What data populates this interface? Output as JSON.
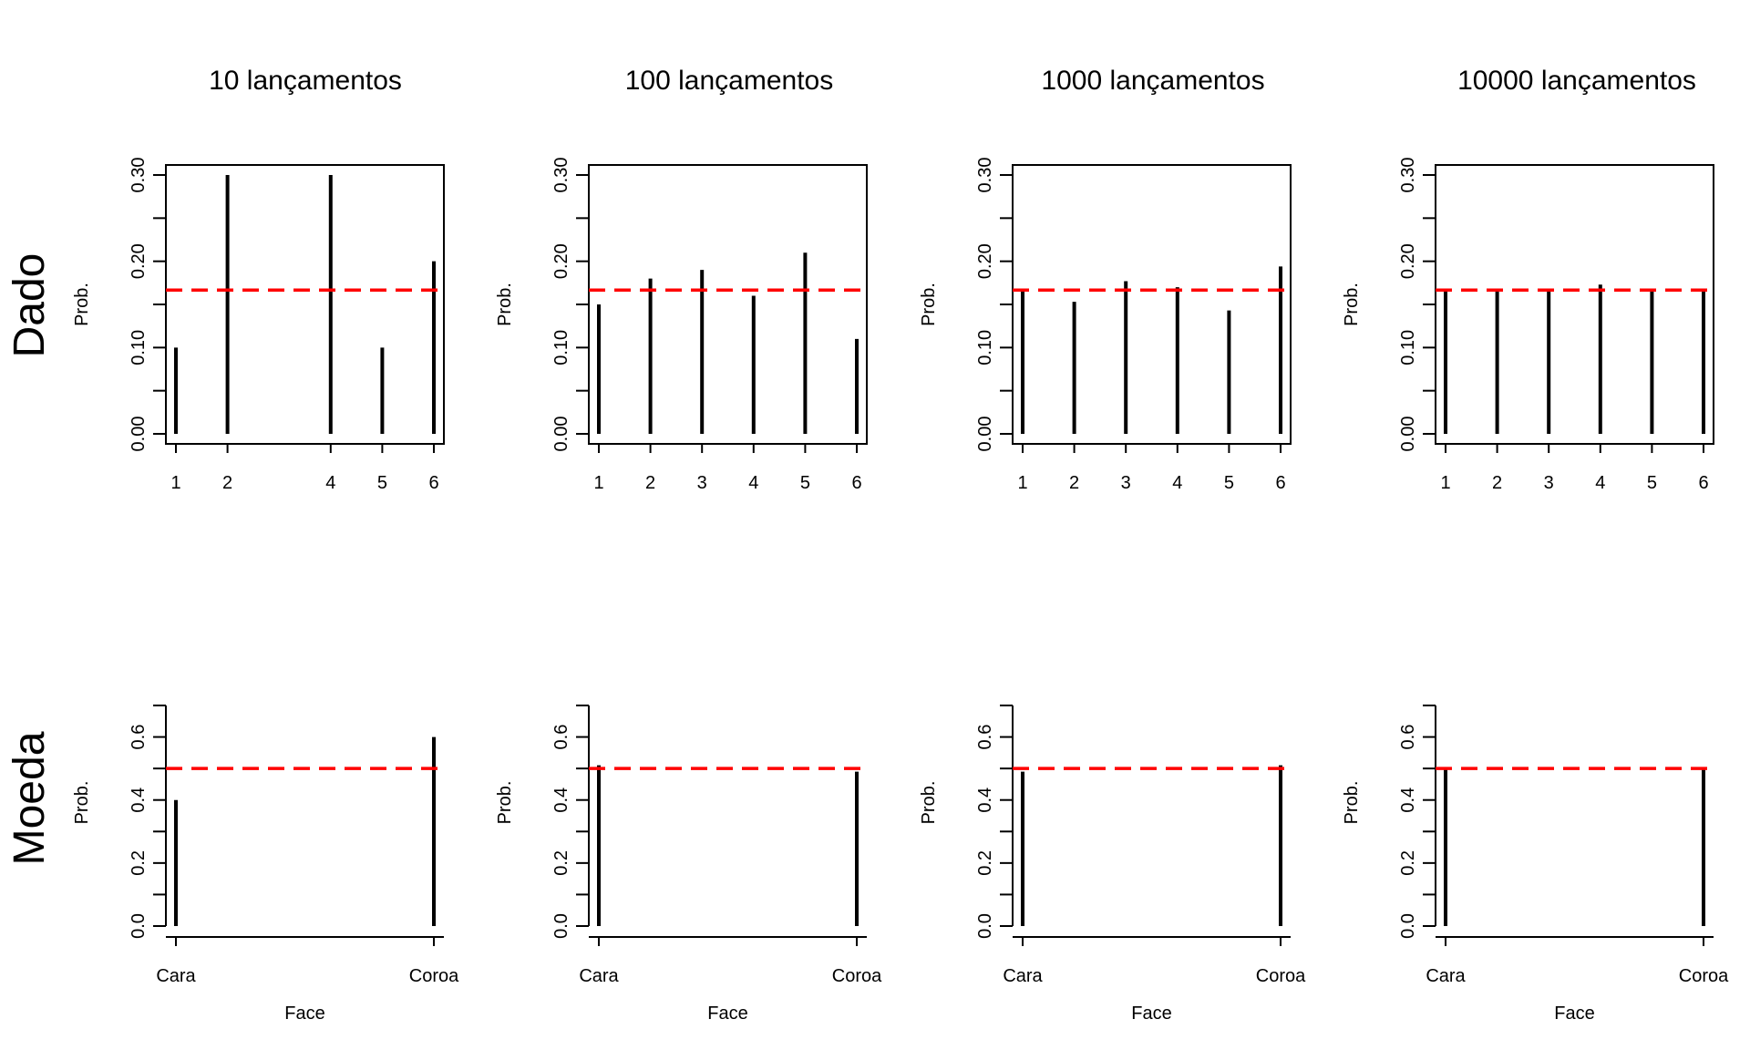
{
  "colors": {
    "axis": "#000000",
    "bar": "#000000",
    "reference_line": "#ff0000"
  },
  "row_labels": [
    "Dado",
    "Moeda"
  ],
  "column_titles": [
    "10 lançamentos",
    "100 lançamentos",
    "1000 lançamentos",
    "10000 lançamentos"
  ],
  "chart_data": [
    {
      "type": "bar",
      "title": "10 lançamentos",
      "row": "Dado",
      "xlabel": "",
      "ylabel": "Prob.",
      "categories": [
        "1",
        "2",
        "4",
        "5",
        "6"
      ],
      "x": [
        1,
        2,
        4,
        5,
        6
      ],
      "values": [
        0.1,
        0.3,
        0.3,
        0.1,
        0.2
      ],
      "xlim": [
        1,
        6
      ],
      "ylim": [
        0,
        0.3
      ],
      "yticks": [
        0.0,
        0.05,
        0.1,
        0.15,
        0.2,
        0.25,
        0.3
      ],
      "ytick_labels": [
        "0.00",
        "",
        "0.10",
        "",
        "0.20",
        "",
        "0.30"
      ],
      "reference_line": 0.1667
    },
    {
      "type": "bar",
      "title": "100 lançamentos",
      "row": "Dado",
      "xlabel": "",
      "ylabel": "Prob.",
      "categories": [
        "1",
        "2",
        "3",
        "4",
        "5",
        "6"
      ],
      "x": [
        1,
        2,
        3,
        4,
        5,
        6
      ],
      "values": [
        0.15,
        0.18,
        0.19,
        0.16,
        0.21,
        0.11
      ],
      "xlim": [
        1,
        6
      ],
      "ylim": [
        0,
        0.3
      ],
      "yticks": [
        0.0,
        0.05,
        0.1,
        0.15,
        0.2,
        0.25,
        0.3
      ],
      "ytick_labels": [
        "0.00",
        "",
        "0.10",
        "",
        "0.20",
        "",
        "0.30"
      ],
      "reference_line": 0.1667
    },
    {
      "type": "bar",
      "title": "1000 lançamentos",
      "row": "Dado",
      "xlabel": "",
      "ylabel": "Prob.",
      "categories": [
        "1",
        "2",
        "3",
        "4",
        "5",
        "6"
      ],
      "x": [
        1,
        2,
        3,
        4,
        5,
        6
      ],
      "values": [
        0.165,
        0.153,
        0.177,
        0.17,
        0.143,
        0.194
      ],
      "xlim": [
        1,
        6
      ],
      "ylim": [
        0,
        0.3
      ],
      "yticks": [
        0.0,
        0.05,
        0.1,
        0.15,
        0.2,
        0.25,
        0.3
      ],
      "ytick_labels": [
        "0.00",
        "",
        "0.10",
        "",
        "0.20",
        "",
        "0.30"
      ],
      "reference_line": 0.1667
    },
    {
      "type": "bar",
      "title": "10000 lançamentos",
      "row": "Dado",
      "xlabel": "",
      "ylabel": "Prob.",
      "categories": [
        "1",
        "2",
        "3",
        "4",
        "5",
        "6"
      ],
      "x": [
        1,
        2,
        3,
        4,
        5,
        6
      ],
      "values": [
        0.167,
        0.166,
        0.166,
        0.173,
        0.165,
        0.166
      ],
      "xlim": [
        1,
        6
      ],
      "ylim": [
        0,
        0.3
      ],
      "yticks": [
        0.0,
        0.05,
        0.1,
        0.15,
        0.2,
        0.25,
        0.3
      ],
      "ytick_labels": [
        "0.00",
        "",
        "0.10",
        "",
        "0.20",
        "",
        "0.30"
      ],
      "reference_line": 0.1667
    },
    {
      "type": "bar",
      "title": "",
      "row": "Moeda",
      "xlabel": "Face",
      "ylabel": "Prob.",
      "categories": [
        "Cara",
        "Coroa"
      ],
      "x": [
        1,
        2
      ],
      "values": [
        0.4,
        0.6
      ],
      "xlim": [
        1,
        2
      ],
      "ylim": [
        0,
        0.6
      ],
      "yticks": [
        0.0,
        0.1,
        0.2,
        0.3,
        0.4,
        0.5,
        0.6,
        0.7
      ],
      "ytick_labels": [
        "0.0",
        "",
        "0.2",
        "",
        "0.4",
        "",
        "0.6",
        ""
      ],
      "reference_line": 0.5
    },
    {
      "type": "bar",
      "title": "",
      "row": "Moeda",
      "xlabel": "Face",
      "ylabel": "Prob.",
      "categories": [
        "Cara",
        "Coroa"
      ],
      "x": [
        1,
        2
      ],
      "values": [
        0.51,
        0.49
      ],
      "xlim": [
        1,
        2
      ],
      "ylim": [
        0,
        0.6
      ],
      "yticks": [
        0.0,
        0.1,
        0.2,
        0.3,
        0.4,
        0.5,
        0.6,
        0.7
      ],
      "ytick_labels": [
        "0.0",
        "",
        "0.2",
        "",
        "0.4",
        "",
        "0.6",
        ""
      ],
      "reference_line": 0.5
    },
    {
      "type": "bar",
      "title": "",
      "row": "Moeda",
      "xlabel": "Face",
      "ylabel": "Prob.",
      "categories": [
        "Cara",
        "Coroa"
      ],
      "x": [
        1,
        2
      ],
      "values": [
        0.49,
        0.51
      ],
      "xlim": [
        1,
        2
      ],
      "ylim": [
        0,
        0.6
      ],
      "yticks": [
        0.0,
        0.1,
        0.2,
        0.3,
        0.4,
        0.5,
        0.6,
        0.7
      ],
      "ytick_labels": [
        "0.0",
        "",
        "0.2",
        "",
        "0.4",
        "",
        "0.6",
        ""
      ],
      "reference_line": 0.5
    },
    {
      "type": "bar",
      "title": "",
      "row": "Moeda",
      "xlabel": "Face",
      "ylabel": "Prob.",
      "categories": [
        "Cara",
        "Coroa"
      ],
      "x": [
        1,
        2
      ],
      "values": [
        0.5,
        0.5
      ],
      "xlim": [
        1,
        2
      ],
      "ylim": [
        0,
        0.6
      ],
      "yticks": [
        0.0,
        0.1,
        0.2,
        0.3,
        0.4,
        0.5,
        0.6,
        0.7
      ],
      "ytick_labels": [
        "0.0",
        "",
        "0.2",
        "",
        "0.4",
        "",
        "0.6",
        ""
      ],
      "reference_line": 0.5
    }
  ]
}
